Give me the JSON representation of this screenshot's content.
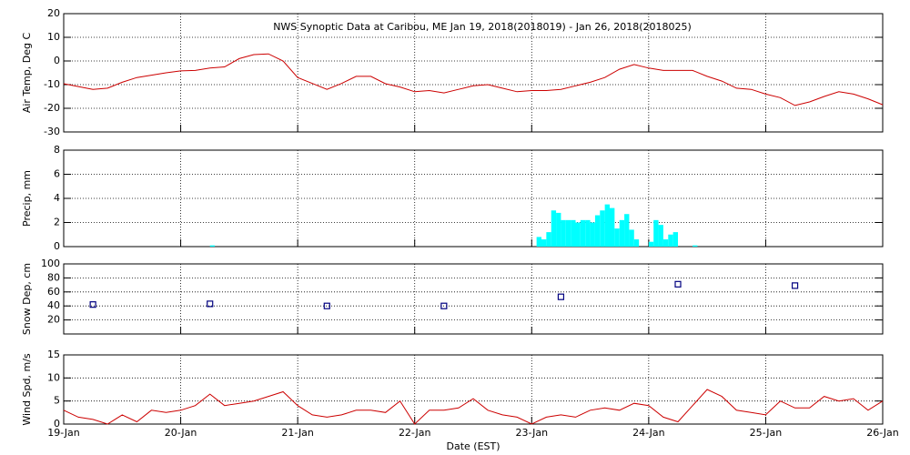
{
  "chart_data": [
    {
      "type": "line",
      "title": "NWS Synoptic Data at Caribou, ME   Jan 19, 2018(2018019) - Jan 26, 2018(2018025)",
      "ylabel": "Air Temp, Deg C",
      "color": "#cc0000",
      "grid": true,
      "xlim": [
        0,
        168
      ],
      "xticks": [
        0,
        24,
        48,
        72,
        96,
        120,
        144,
        168
      ],
      "ylim": [
        -30,
        20
      ],
      "yticks": [
        -30,
        -20,
        -10,
        0,
        10,
        20
      ],
      "x": [
        0,
        3,
        6,
        9,
        12,
        15,
        18,
        21,
        24,
        27,
        30,
        33,
        36,
        39,
        42,
        45,
        48,
        51,
        54,
        57,
        60,
        63,
        66,
        69,
        72,
        75,
        78,
        81,
        84,
        87,
        90,
        93,
        96,
        99,
        102,
        105,
        108,
        111,
        114,
        117,
        120,
        123,
        126,
        129,
        132,
        135,
        138,
        141,
        144,
        147,
        150,
        153,
        156,
        159,
        162,
        165,
        168
      ],
      "values": [
        -9.6,
        -10.8,
        -12,
        -11.5,
        -9,
        -7,
        -6,
        -5,
        -4.2,
        -4,
        -3,
        -2.5,
        1,
        2.7,
        3,
        0,
        -7,
        -9.5,
        -12,
        -9.5,
        -6.5,
        -6.5,
        -9.6,
        -11,
        -13,
        -12.5,
        -13.5,
        -12,
        -10.5,
        -10,
        -11.5,
        -13,
        -12.5,
        -12.5,
        -12,
        -10.5,
        -9,
        -7,
        -3.5,
        -1.5,
        -3,
        -4,
        -4,
        -4,
        -6.5,
        -8.5,
        -11.5,
        -12,
        -14,
        -15.5,
        -18.8,
        -17.3,
        -15,
        -13,
        -14,
        -16,
        -18.5
      ]
    },
    {
      "type": "bar",
      "ylabel": "Precip, mm",
      "color": "#00ffff",
      "grid": true,
      "xlim": [
        0,
        168
      ],
      "xticks": [
        0,
        24,
        48,
        72,
        96,
        120,
        144,
        168
      ],
      "ylim": [
        0,
        8
      ],
      "yticks": [
        0,
        2,
        4,
        6,
        8
      ],
      "x": [
        30,
        97,
        98,
        99,
        100,
        101,
        102,
        103,
        104,
        105,
        106,
        107,
        108,
        109,
        110,
        111,
        112,
        113,
        114,
        115,
        116,
        117,
        120,
        121,
        122,
        123,
        124,
        125,
        129
      ],
      "values": [
        0.1,
        0.8,
        0.6,
        1.2,
        3.0,
        2.8,
        2.2,
        2.2,
        2.2,
        2.0,
        2.2,
        2.2,
        2.0,
        2.6,
        3.0,
        3.5,
        3.2,
        1.5,
        2.2,
        2.7,
        1.4,
        0.6,
        0.4,
        2.2,
        1.8,
        0.6,
        1.0,
        1.2,
        0.1
      ]
    },
    {
      "type": "scatter",
      "ylabel": "Snow Dep, cm",
      "color": "#000080",
      "grid": true,
      "xlim": [
        0,
        168
      ],
      "xticks": [
        0,
        24,
        48,
        72,
        96,
        120,
        144,
        168
      ],
      "ylim": [
        0,
        100
      ],
      "yticks": [
        20,
        40,
        60,
        80,
        100
      ],
      "x": [
        6,
        30,
        54,
        78,
        102,
        126,
        150
      ],
      "values": [
        42,
        43,
        40,
        40,
        53,
        71,
        69
      ]
    },
    {
      "type": "line",
      "ylabel": "Wind Spd, m/s",
      "xlabel": "Date (EST)",
      "color": "#cc0000",
      "grid": true,
      "xlim": [
        0,
        168
      ],
      "xticks": [
        {
          "value": 0,
          "label": "19-Jan"
        },
        {
          "value": 24,
          "label": "20-Jan"
        },
        {
          "value": 48,
          "label": "21-Jan"
        },
        {
          "value": 72,
          "label": "22-Jan"
        },
        {
          "value": 96,
          "label": "23-Jan"
        },
        {
          "value": 120,
          "label": "24-Jan"
        },
        {
          "value": 144,
          "label": "25-Jan"
        },
        {
          "value": 168,
          "label": "26-Jan"
        }
      ],
      "ylim": [
        0,
        15
      ],
      "yticks": [
        0,
        5,
        10,
        15
      ],
      "x": [
        0,
        3,
        6,
        9,
        12,
        15,
        18,
        21,
        24,
        27,
        30,
        33,
        36,
        39,
        42,
        45,
        48,
        51,
        54,
        57,
        60,
        63,
        66,
        69,
        72,
        75,
        78,
        81,
        84,
        87,
        90,
        93,
        96,
        99,
        102,
        105,
        108,
        111,
        114,
        117,
        120,
        123,
        126,
        129,
        132,
        135,
        138,
        141,
        144,
        147,
        150,
        153,
        156,
        159,
        162,
        165,
        168
      ],
      "values": [
        3,
        1.5,
        1,
        0,
        2,
        0.5,
        3,
        2.5,
        3,
        4,
        6.5,
        4,
        4.5,
        5,
        6,
        7,
        4,
        2,
        1.5,
        2,
        3,
        3,
        2.5,
        5,
        0,
        3,
        3,
        3.5,
        5.5,
        3,
        2,
        1.5,
        0,
        1.5,
        2,
        1.5,
        3,
        3.5,
        3,
        4.5,
        4,
        1.5,
        0.5,
        4,
        7.5,
        6,
        3,
        2.5,
        2,
        5,
        3.5,
        3.5,
        6,
        5,
        5.5,
        3,
        5
      ]
    }
  ]
}
